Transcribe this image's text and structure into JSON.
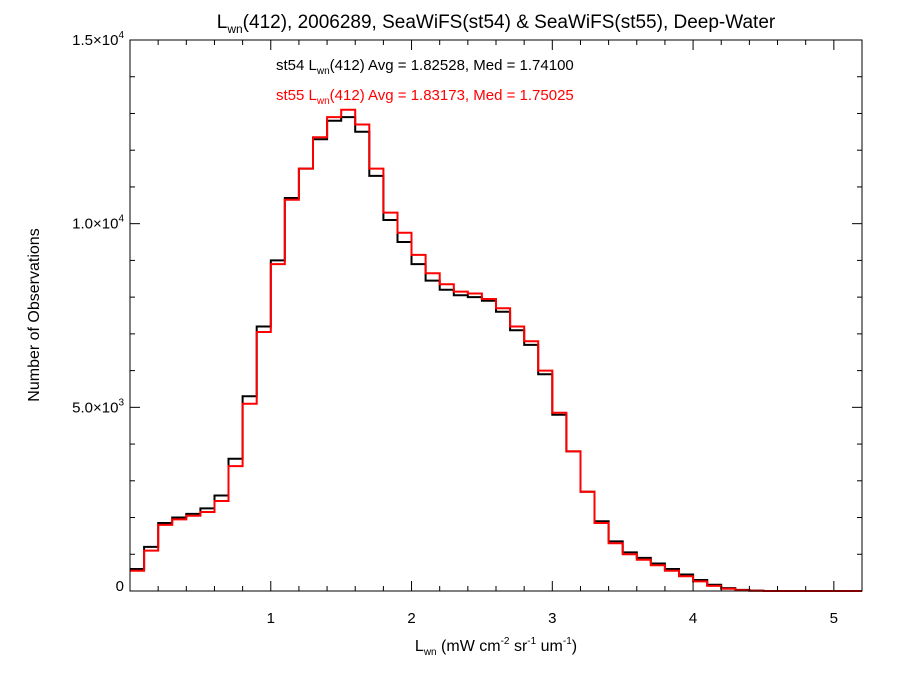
{
  "chart_data": {
    "type": "histogram-step",
    "title": {
      "prefix": "L",
      "sub": "wn",
      "suffix": "(412), 2006289, SeaWiFS(st54) & SeaWiFS(st55), Deep-Water"
    },
    "xlabel": {
      "main": "L",
      "sub": "wn",
      "parts": [
        {
          "t": " (mW cm",
          "s": null
        },
        {
          "t": "-2",
          "s": "sup"
        },
        {
          "t": " sr",
          "s": null
        },
        {
          "t": "-1",
          "s": "sup"
        },
        {
          "t": " um",
          "s": null
        },
        {
          "t": "-1",
          "s": "sup"
        },
        {
          "t": ")",
          "s": null
        }
      ]
    },
    "ylabel": "Number of Observations",
    "xlim": [
      0.0,
      5.2
    ],
    "ylim": [
      0,
      15000
    ],
    "x_ticks": [
      {
        "v": 1,
        "label": "1"
      },
      {
        "v": 2,
        "label": "2"
      },
      {
        "v": 3,
        "label": "3"
      },
      {
        "v": 4,
        "label": "4"
      },
      {
        "v": 5,
        "label": "5"
      }
    ],
    "y_ticks": [
      {
        "v": 0,
        "mant": "0",
        "exp": ""
      },
      {
        "v": 5000,
        "mant": "5.0×10",
        "exp": "3"
      },
      {
        "v": 10000,
        "mant": "1.0×10",
        "exp": "4"
      },
      {
        "v": 15000,
        "mant": "1.5×10",
        "exp": "4"
      }
    ],
    "annotations": [
      {
        "color": "#000000",
        "pre": "st54 L",
        "sub": "wn",
        "post": "(412) Avg = 1.82528, Med = 1.74100"
      },
      {
        "color": "#ff0000",
        "pre": "st55 L",
        "sub": "wn",
        "post": "(412) Avg = 1.83173, Med = 1.75025"
      }
    ],
    "series": [
      {
        "color": "#000000",
        "x": [
          0.0,
          0.1,
          0.2,
          0.3,
          0.4,
          0.5,
          0.6,
          0.7,
          0.8,
          0.9,
          1.0,
          1.1,
          1.2,
          1.3,
          1.4,
          1.5,
          1.6,
          1.7,
          1.8,
          1.9,
          2.0,
          2.1,
          2.2,
          2.3,
          2.4,
          2.5,
          2.6,
          2.7,
          2.8,
          2.9,
          3.0,
          3.1,
          3.2,
          3.3,
          3.4,
          3.5,
          3.6,
          3.7,
          3.8,
          3.9,
          4.0,
          4.1,
          4.2,
          4.3,
          4.4,
          4.5,
          5.2
        ],
        "y": [
          600,
          1200,
          1850,
          2000,
          2100,
          2250,
          2600,
          3600,
          5300,
          7200,
          9000,
          10700,
          11500,
          12300,
          12800,
          12900,
          12500,
          11300,
          10100,
          9500,
          8900,
          8450,
          8200,
          8050,
          8000,
          7900,
          7600,
          7100,
          6700,
          5900,
          4800,
          3800,
          2700,
          1900,
          1350,
          1050,
          900,
          750,
          600,
          450,
          300,
          170,
          80,
          30,
          10,
          0,
          0
        ]
      },
      {
        "color": "#ff0000",
        "x": [
          0.0,
          0.1,
          0.2,
          0.3,
          0.4,
          0.5,
          0.6,
          0.7,
          0.8,
          0.9,
          1.0,
          1.1,
          1.2,
          1.3,
          1.4,
          1.5,
          1.6,
          1.7,
          1.8,
          1.9,
          2.0,
          2.1,
          2.2,
          2.3,
          2.4,
          2.5,
          2.6,
          2.7,
          2.8,
          2.9,
          3.0,
          3.1,
          3.2,
          3.3,
          3.4,
          3.5,
          3.6,
          3.7,
          3.8,
          3.9,
          4.0,
          4.1,
          4.2,
          4.3,
          4.4,
          4.5,
          5.2
        ],
        "y": [
          550,
          1100,
          1800,
          1950,
          2050,
          2150,
          2450,
          3400,
          5100,
          7050,
          8900,
          10650,
          11500,
          12350,
          12900,
          13100,
          12700,
          11500,
          10300,
          9750,
          9150,
          8650,
          8350,
          8150,
          8100,
          7950,
          7700,
          7200,
          6800,
          6000,
          4850,
          3800,
          2700,
          1850,
          1300,
          1000,
          850,
          700,
          550,
          400,
          260,
          140,
          60,
          20,
          5,
          0,
          0
        ]
      }
    ]
  }
}
